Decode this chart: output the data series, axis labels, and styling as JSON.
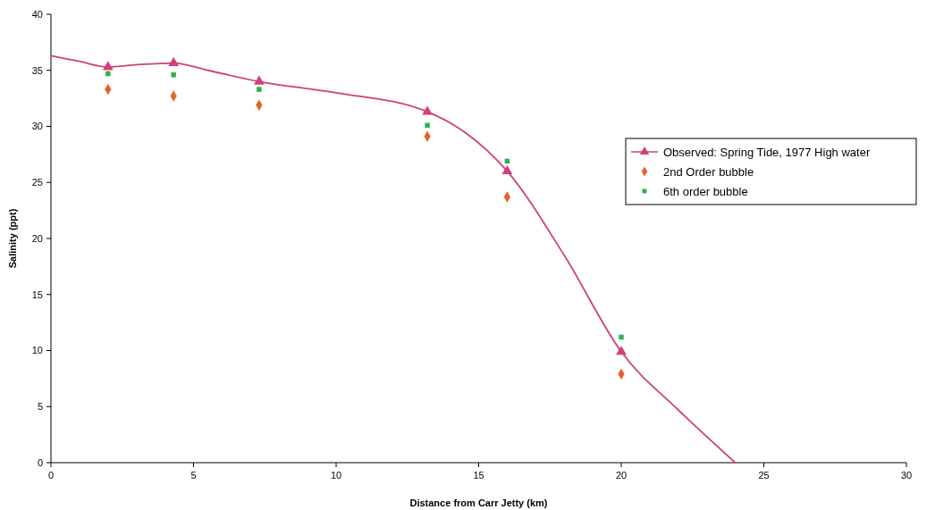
{
  "chart_data": {
    "type": "scatter",
    "xlabel": "Distance from Carr Jetty (km)",
    "ylabel": "Salinity (ppt)",
    "xlim": [
      0,
      30
    ],
    "xticks": [
      0,
      5,
      10,
      15,
      20,
      25,
      30
    ],
    "ylim": [
      0,
      40
    ],
    "yticks": [
      0,
      5,
      10,
      15,
      20,
      25,
      30,
      35,
      40
    ],
    "grid": false,
    "legend": "right",
    "series": [
      {
        "type": "line",
        "color": "#d0407a",
        "marker": "none",
        "x": [
          0,
          1,
          2,
          3,
          4.3,
          5.5,
          7.3,
          10,
          13.2,
          14.5,
          16,
          18,
          20,
          22,
          24
        ],
        "values": [
          36.3,
          35.8,
          35.3,
          35.5,
          35.65,
          35.0,
          34.0,
          33.0,
          31.3,
          29.5,
          26.0,
          18.5,
          9.9,
          4.7,
          0
        ]
      },
      {
        "name": "Observed: Spring Tide, 1977 High water",
        "color": "#d0407a",
        "marker": "triangle",
        "x": [
          2,
          4.3,
          7.3,
          13.2,
          16,
          20
        ],
        "values": [
          35.3,
          35.65,
          34.0,
          31.3,
          26.0,
          9.9
        ]
      },
      {
        "name": "2nd Order bubble",
        "color": "#e8602c",
        "marker": "diamond",
        "x": [
          2,
          4.3,
          7.3,
          13.2,
          16,
          20
        ],
        "values": [
          33.3,
          32.7,
          31.9,
          29.1,
          23.7,
          7.9
        ]
      },
      {
        "name": "6th order bubble",
        "color": "#2db34a",
        "marker": "square",
        "x": [
          2,
          4.3,
          7.3,
          13.2,
          16,
          20
        ],
        "values": [
          34.7,
          34.6,
          33.3,
          30.1,
          26.9,
          11.2
        ]
      }
    ]
  }
}
